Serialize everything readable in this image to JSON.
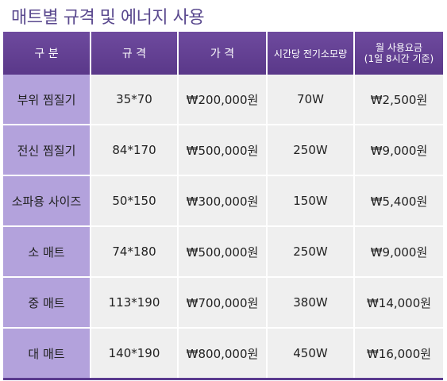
{
  "title": "매트별 규격 및 에너지 사용",
  "table": {
    "headers": {
      "category": "구 분",
      "size": "규 격",
      "price": "가 격",
      "power": "시간당 전기소모량",
      "monthly_line1": "월 사용요금",
      "monthly_line2": "(1일 8시간 기준)"
    },
    "rows": [
      {
        "name": "부위 찜질기",
        "size": "35*70",
        "price": "₩200,000원",
        "power": "70W",
        "monthly": "₩2,500원"
      },
      {
        "name": "전신 찜질기",
        "size": "84*170",
        "price": "₩500,000원",
        "power": "250W",
        "monthly": "₩9,000원"
      },
      {
        "name": "소파용 사이즈",
        "size": "50*150",
        "price": "₩300,000원",
        "power": "150W",
        "monthly": "₩5,400원"
      },
      {
        "name": "소 매트",
        "size": "74*180",
        "price": "₩500,000원",
        "power": "250W",
        "monthly": "₩9,000원"
      },
      {
        "name": "중 매트",
        "size": "113*190",
        "price": "₩700,000원",
        "power": "380W",
        "monthly": "₩14,000원"
      },
      {
        "name": "대 매트",
        "size": "140*190",
        "price": "₩800,000원",
        "power": "450W",
        "monthly": "₩16,000원"
      }
    ]
  },
  "colors": {
    "header_purple": "#5a3889",
    "row_head_lavender": "#b3a2dc",
    "cell_gray": "#efefef",
    "title_color": "#5b4a8f"
  }
}
